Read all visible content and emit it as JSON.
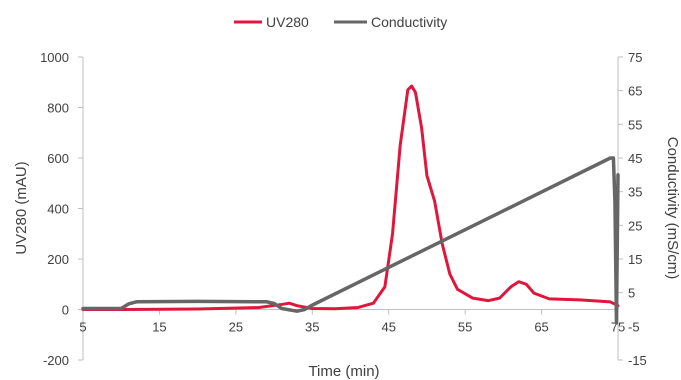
{
  "chart_data": {
    "type": "line",
    "xlabel": "Time (min)",
    "ylabel": "UV280 (mAU)",
    "y2label": "Conductivity (mS/cm)",
    "xlim": [
      5,
      75
    ],
    "ylim": [
      -200,
      1000
    ],
    "y2lim": [
      -15,
      75
    ],
    "x_ticks": [
      "5",
      "15",
      "25",
      "35",
      "45",
      "55",
      "65",
      "75"
    ],
    "y_ticks": [
      "-200",
      "0",
      "200",
      "400",
      "600",
      "800",
      "1000"
    ],
    "y2_ticks": [
      "-15",
      "-5",
      "5",
      "15",
      "25",
      "35",
      "45",
      "55",
      "65",
      "75"
    ],
    "grid": false,
    "legend_position": "top-center",
    "series": [
      {
        "name": "UV280",
        "axis": "left",
        "color": "#e0173d",
        "points": [
          [
            5,
            0
          ],
          [
            10,
            0
          ],
          [
            20,
            2
          ],
          [
            28,
            8
          ],
          [
            31,
            20
          ],
          [
            32,
            25
          ],
          [
            33,
            15
          ],
          [
            35,
            4
          ],
          [
            38,
            3
          ],
          [
            41,
            8
          ],
          [
            43,
            25
          ],
          [
            44.5,
            90
          ],
          [
            45.5,
            300
          ],
          [
            46.5,
            650
          ],
          [
            47.5,
            870
          ],
          [
            48,
            885
          ],
          [
            48.5,
            860
          ],
          [
            49.3,
            720
          ],
          [
            50,
            530
          ],
          [
            51,
            430
          ],
          [
            52,
            260
          ],
          [
            53,
            140
          ],
          [
            54,
            80
          ],
          [
            56,
            45
          ],
          [
            58,
            35
          ],
          [
            59.5,
            45
          ],
          [
            61,
            90
          ],
          [
            62,
            110
          ],
          [
            63,
            100
          ],
          [
            64,
            65
          ],
          [
            66,
            42
          ],
          [
            70,
            38
          ],
          [
            74,
            30
          ],
          [
            75,
            15
          ]
        ]
      },
      {
        "name": "Conductivity",
        "axis": "right",
        "color": "#666666",
        "points": [
          [
            5,
            0.3
          ],
          [
            10,
            0.3
          ],
          [
            11,
            1.7
          ],
          [
            12,
            2.3
          ],
          [
            20,
            2.4
          ],
          [
            29,
            2.3
          ],
          [
            30,
            1.8
          ],
          [
            31,
            0.3
          ],
          [
            33,
            -0.5
          ],
          [
            34,
            0
          ],
          [
            35,
            1.3
          ],
          [
            74,
            45
          ],
          [
            74.4,
            45
          ],
          [
            74.6,
            32
          ],
          [
            74.8,
            -4
          ],
          [
            75,
            40
          ]
        ]
      }
    ]
  }
}
